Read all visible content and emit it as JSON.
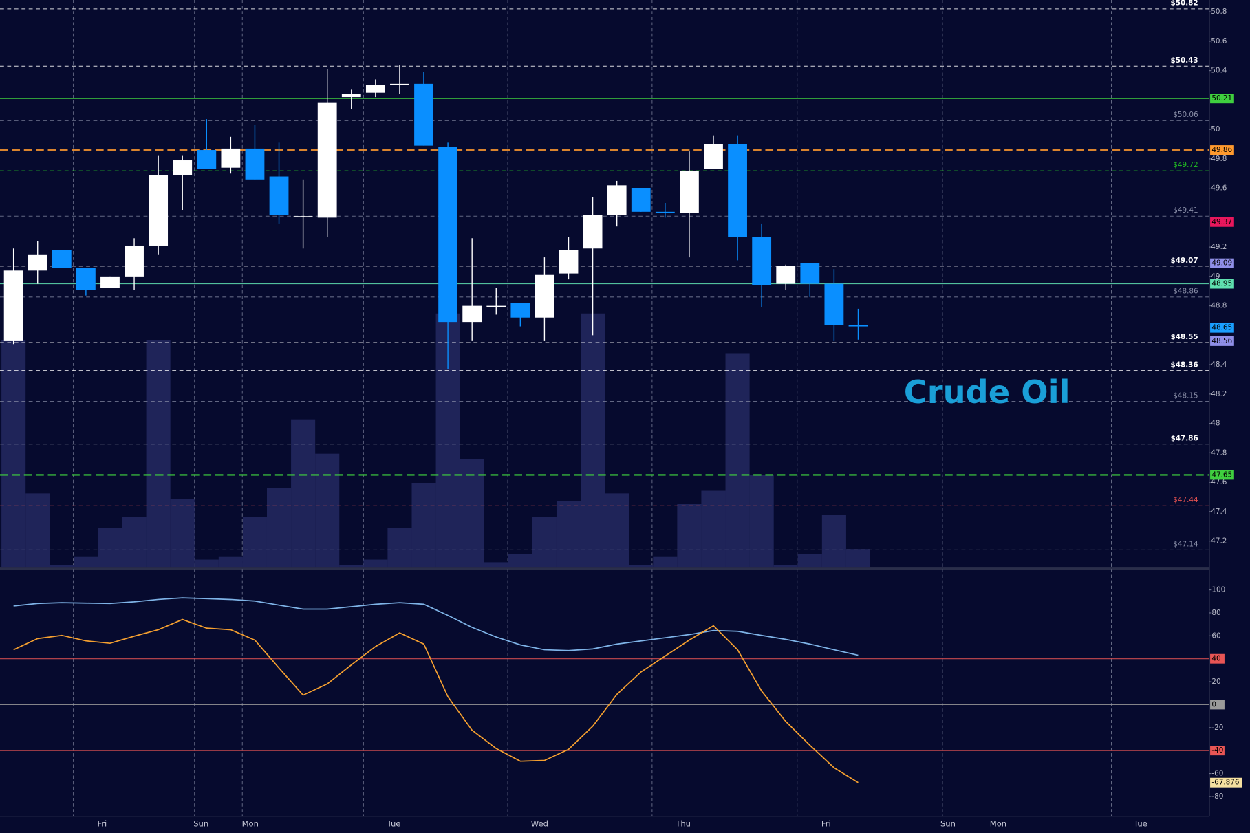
{
  "chart_data": [
    {
      "type": "candlestick",
      "xlim": [
        -0.56,
        49.55
      ],
      "xticks": [
        {
          "value": 3.67,
          "label": "Fri"
        },
        {
          "value": 7.77,
          "label": "Sun"
        },
        {
          "value": 9.81,
          "label": "Mon"
        },
        {
          "value": 15.76,
          "label": "Tue"
        },
        {
          "value": 21.8,
          "label": "Wed"
        },
        {
          "value": 27.75,
          "label": "Thu"
        },
        {
          "value": 33.67,
          "label": "Fri"
        },
        {
          "value": 38.72,
          "label": "Sun"
        },
        {
          "value": 40.8,
          "label": "Mon"
        },
        {
          "value": 46.7,
          "label": "Tue"
        }
      ],
      "xgrid": [
        2.48,
        7.5,
        9.48,
        14.5,
        20.48,
        26.46,
        32.47,
        38.49,
        45.49
      ],
      "ylim": [
        47.02,
        50.88
      ],
      "yticks": [
        50.8,
        50.6,
        50.4,
        50,
        49.8,
        49.6,
        49.2,
        49,
        48.8,
        48.4,
        48.2,
        48,
        47.8,
        47.6,
        47.4,
        47.2
      ],
      "open": [
        48.56,
        49.04,
        49.18,
        49.06,
        48.92,
        49.0,
        49.21,
        49.69,
        49.86,
        49.74,
        49.87,
        49.68,
        49.41,
        49.4,
        50.22,
        50.25,
        50.3,
        50.31,
        49.88,
        48.69,
        48.8,
        48.82,
        48.72,
        49.02,
        49.19,
        49.42,
        49.6,
        49.44,
        49.43,
        49.73,
        49.9,
        49.27,
        48.95,
        49.09,
        48.95,
        48.67
      ],
      "high": [
        49.19,
        49.24,
        49.18,
        49.06,
        49.0,
        49.26,
        49.82,
        49.82,
        50.07,
        49.95,
        50.03,
        49.91,
        49.66,
        50.41,
        50.27,
        50.34,
        50.44,
        50.39,
        49.91,
        49.26,
        48.92,
        48.82,
        49.13,
        49.27,
        49.54,
        49.65,
        49.6,
        49.5,
        49.85,
        49.96,
        49.96,
        49.36,
        49.08,
        49.09,
        49.05,
        48.78
      ],
      "low": [
        48.54,
        48.95,
        49.06,
        48.87,
        48.92,
        48.91,
        49.15,
        49.45,
        49.73,
        49.7,
        49.66,
        49.36,
        49.19,
        49.27,
        50.14,
        50.22,
        50.24,
        49.89,
        48.37,
        48.56,
        48.74,
        48.66,
        48.56,
        48.98,
        48.6,
        49.34,
        49.44,
        49.4,
        49.13,
        49.73,
        49.11,
        48.79,
        48.91,
        48.86,
        48.56,
        48.57
      ],
      "close": [
        49.04,
        49.15,
        49.06,
        48.91,
        49.0,
        49.21,
        49.69,
        49.79,
        49.73,
        49.87,
        49.66,
        49.42,
        49.41,
        50.18,
        50.24,
        50.3,
        50.31,
        49.89,
        48.69,
        48.8,
        48.8,
        48.72,
        49.01,
        49.18,
        49.42,
        49.62,
        49.44,
        49.43,
        49.72,
        49.9,
        49.27,
        48.94,
        49.07,
        48.95,
        48.67,
        48.66
      ],
      "up_color": "#ffffff",
      "down_color": "#0a8fff",
      "volume": [
        86,
        28,
        1,
        4,
        15,
        19,
        86,
        26,
        3,
        4,
        19,
        30,
        56,
        43,
        1,
        3,
        15,
        32,
        96,
        41,
        2,
        5,
        19,
        25,
        96,
        28,
        1,
        4,
        24,
        29,
        81,
        35,
        1,
        5,
        20,
        7
      ],
      "volume_lim": [
        0,
        100
      ],
      "volume_color": "#1f2459",
      "levels": [
        {
          "value": 50.82,
          "label": "$50.82",
          "color": "#ffffff"
        },
        {
          "value": 50.43,
          "label": "$50.43",
          "color": "#ffffff"
        },
        {
          "value": 50.06,
          "label": "$50.06",
          "color": "#8a8fa8"
        },
        {
          "value": 49.72,
          "label": "$49.72",
          "color": "#22c022"
        },
        {
          "value": 49.41,
          "label": "$49.41",
          "color": "#8a8fa8"
        },
        {
          "value": 49.07,
          "label": "$49.07",
          "color": "#ffffff"
        },
        {
          "value": 48.86,
          "label": "$48.86",
          "color": "#8a8fa8"
        },
        {
          "value": 48.55,
          "label": "$48.55",
          "color": "#ffffff"
        },
        {
          "value": 48.36,
          "label": "$48.36",
          "color": "#ffffff"
        },
        {
          "value": 48.15,
          "label": "$48.15",
          "color": "#8a8fa8"
        },
        {
          "value": 47.86,
          "label": "$47.86",
          "color": "#ffffff"
        },
        {
          "value": 47.44,
          "label": "$47.44",
          "color": "#e05050"
        },
        {
          "value": 47.14,
          "label": "$47.14",
          "color": "#8a8fa8"
        }
      ],
      "tags": [
        {
          "value": 50.21,
          "color": "#3fcf3f",
          "line": "solid"
        },
        {
          "value": 49.86,
          "color": "#ff9a2e",
          "line": "dashed"
        },
        {
          "value": 49.37,
          "color": "#e8175d"
        },
        {
          "value": 49.09,
          "color": "#8f8fe8"
        },
        {
          "value": 48.95,
          "color": "#5fe0b0",
          "line": "solid"
        },
        {
          "value": 48.65,
          "color": "#1a9fff"
        },
        {
          "value": 48.56,
          "color": "#8f8fe8"
        },
        {
          "value": 47.65,
          "color": "#3fcf3f",
          "line": "dashed"
        }
      ],
      "annotation": "Crude Oil"
    },
    {
      "type": "line",
      "xlim": [
        -0.56,
        49.55
      ],
      "ylim": [
        -97.2,
        104.2
      ],
      "yticks": [
        100,
        80,
        60,
        20,
        -20,
        -60,
        -80
      ],
      "tags": [
        {
          "value": 40,
          "color": "#e85555"
        },
        {
          "value": 0,
          "color": "#9a9a9a"
        },
        {
          "value": -40,
          "color": "#e85555"
        }
      ],
      "series": [
        {
          "color": "#7fb4e8",
          "values": [
            86.1,
            88.2,
            88.9,
            88.5,
            88.2,
            89.6,
            91.7,
            93.1,
            92.4,
            91.7,
            90.3,
            86.8,
            83.3,
            83.3,
            85.4,
            87.5,
            88.9,
            87.5,
            77.8,
            67.4,
            59.0,
            52.1,
            47.9,
            47.2,
            48.6,
            52.8,
            55.6,
            58.3,
            61.1,
            64.6,
            63.9,
            60.4,
            56.9,
            52.8,
            47.9,
            43.1
          ]
        },
        {
          "color": "#f5a030",
          "values": [
            47.9,
            57.6,
            60.4,
            55.6,
            53.5,
            59.7,
            65.3,
            74.3,
            66.7,
            65.3,
            56.3,
            31.9,
            8.3,
            18.1,
            34.7,
            50.7,
            62.5,
            52.8,
            6.9,
            -22.2,
            -38.2,
            -49.3,
            -48.6,
            -38.9,
            -18.8,
            9.0,
            28.5,
            42.4,
            56.3,
            68.8,
            47.9,
            11.8,
            -14.6,
            -35.4,
            -54.9,
            -67.876
          ]
        }
      ]
    }
  ]
}
